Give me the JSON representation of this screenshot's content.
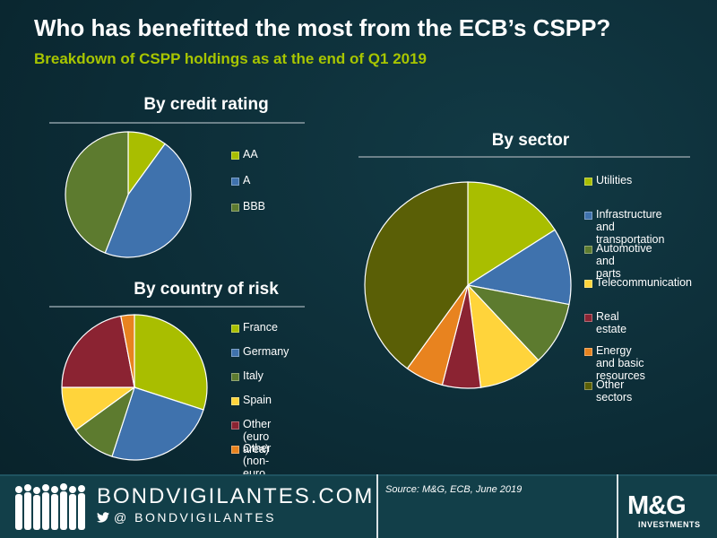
{
  "header": {
    "title": "Who has benefitted the most from the ECB’s CSPP?",
    "subtitle": "Breakdown of CSPP holdings as at the end of Q1 2019"
  },
  "chart_data": [
    {
      "type": "pie",
      "title": "By credit rating",
      "labels": [
        "AA",
        "A",
        "BBB"
      ],
      "values": [
        10,
        46,
        44
      ],
      "colors": [
        "#a9be00",
        "#3f72ad",
        "#5d7b2f"
      ],
      "legend_position": "right"
    },
    {
      "type": "pie",
      "title": "By country of risk",
      "labels": [
        "France",
        "Germany",
        "Italy",
        "Spain",
        "Other (euro area)",
        "Other (non-euro area)"
      ],
      "values": [
        30,
        25,
        10,
        10,
        22,
        3
      ],
      "colors": [
        "#a9be00",
        "#3f72ad",
        "#5d7b2f",
        "#ffd43b",
        "#8b2332",
        "#e8831f"
      ],
      "legend_position": "right"
    },
    {
      "type": "pie",
      "title": "By sector",
      "labels": [
        "Utilities",
        "Infrastructure and\ntransportation",
        "Automotive and\nparts",
        "Telecommunication",
        "Real estate",
        "Energy and basic\nresources",
        "Other sectors"
      ],
      "values": [
        16,
        12,
        10,
        10,
        6,
        6,
        40
      ],
      "colors": [
        "#a9be00",
        "#3f72ad",
        "#5d7b2f",
        "#ffd43b",
        "#8b2332",
        "#e8831f",
        "#5a5f06"
      ],
      "legend_position": "right"
    }
  ],
  "footer": {
    "brand": "BONDVIGILANTES.COM",
    "twitter_handle": "@ BONDVIGILANTES",
    "source": "Source: M&G, ECB, June 2019",
    "logo": "M&G",
    "logo_sub": "INVESTMENTS"
  },
  "icons": {
    "people": "people-silhouette-icon",
    "twitter": "twitter-bird-icon"
  }
}
